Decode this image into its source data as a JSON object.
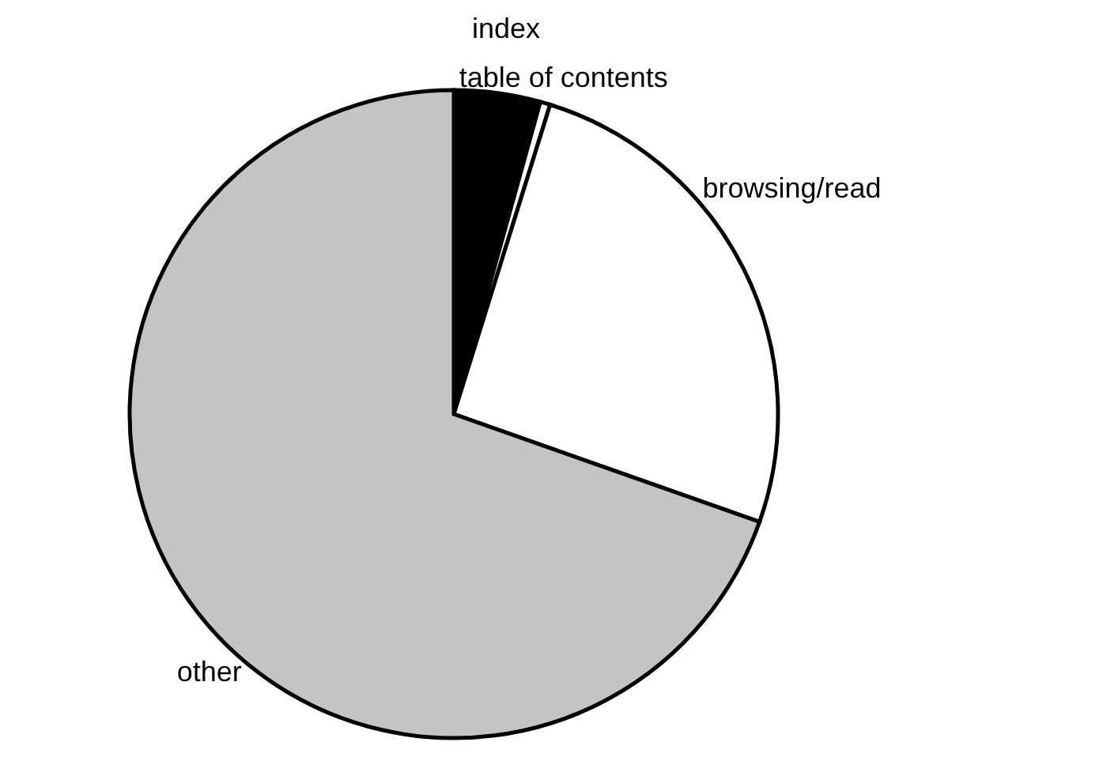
{
  "chart_data": {
    "type": "pie",
    "categories": [
      "index",
      "table of contents",
      "browsing/read",
      "other"
    ],
    "values": [
      4.3,
      0.5,
      25.6,
      69.6
    ],
    "colors": [
      "#000000",
      "#ffffff",
      "#ffffff",
      "#c4c4c4"
    ],
    "legend": false
  }
}
